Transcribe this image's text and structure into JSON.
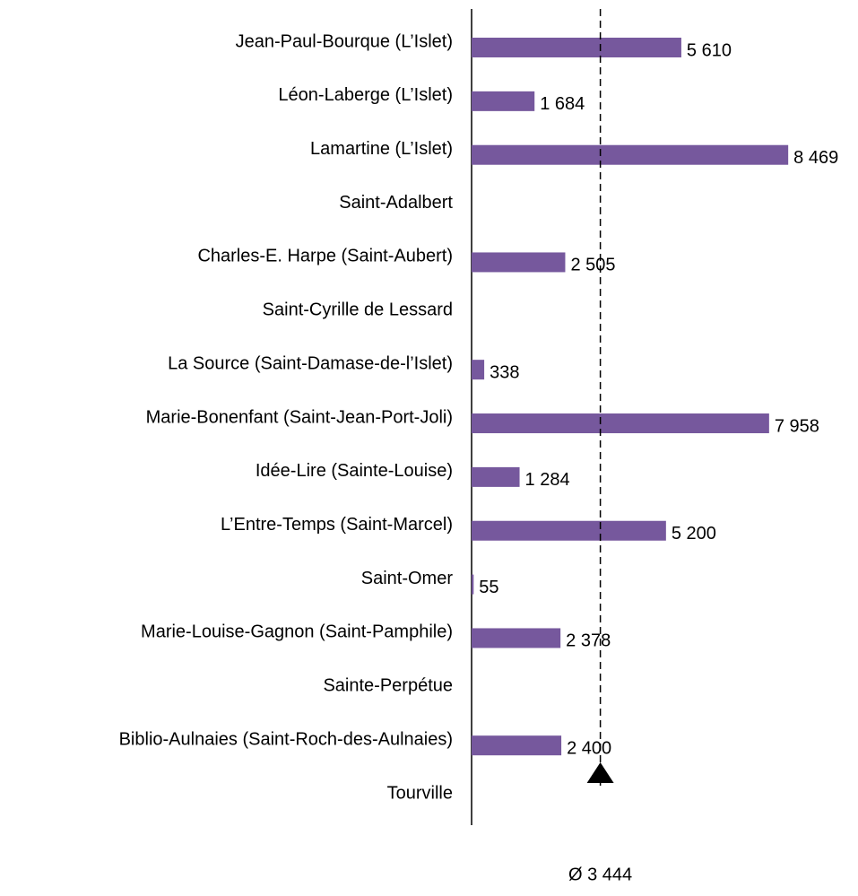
{
  "chart_data": {
    "type": "bar",
    "orientation": "horizontal",
    "categories": [
      "Jean-Paul-Bourque (L’Islet)",
      "Léon-Laberge (L’Islet)",
      "Lamartine (L’Islet)",
      "Saint-Adalbert",
      "Charles-E. Harpe (Saint-Aubert)",
      "Saint-Cyrille de Lessard",
      "La Source (Saint-Damase-de-l’Islet)",
      "Marie-Bonenfant (Saint-Jean-Port-Joli)",
      "Idée-Lire (Sainte-Louise)",
      "L’Entre-Temps (Saint-Marcel)",
      "Saint-Omer",
      "Marie-Louise-Gagnon (Saint-Pamphile)",
      "Sainte-Perpétue",
      "Biblio-Aulnaies (Saint-Roch-des-Aulnaies)",
      "Tourville"
    ],
    "values": [
      5610,
      1684,
      8469,
      null,
      2505,
      null,
      338,
      7958,
      1284,
      5200,
      55,
      2378,
      null,
      2400,
      null
    ],
    "value_labels": [
      "5 610",
      "1 684",
      "8 469",
      null,
      "2 505",
      null,
      "338",
      "7 958",
      "1 284",
      "5 200",
      "55",
      "2 378",
      null,
      "2 400",
      null
    ],
    "color": "#76589d",
    "xlim": [
      0,
      10000
    ],
    "average": {
      "value": 3444,
      "label": "Ø 3 444"
    }
  }
}
